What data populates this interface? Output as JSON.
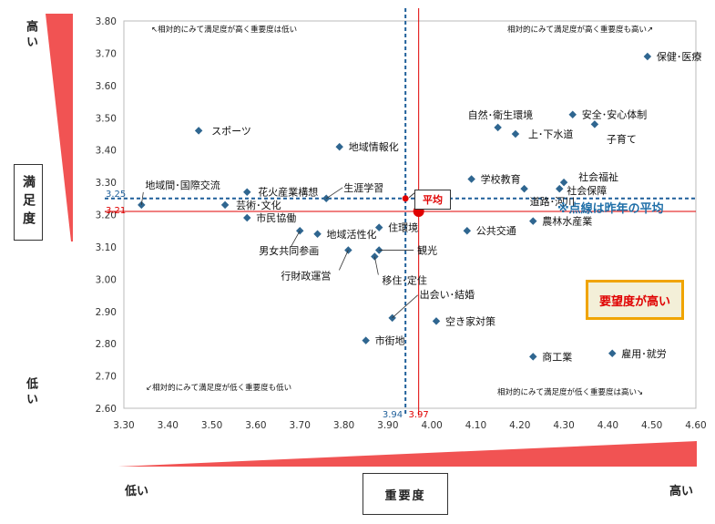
{
  "y_axis_box": "満足度",
  "x_axis_box": "重要度",
  "y_high": "高い",
  "y_low": "低い",
  "x_low": "低い",
  "x_high": "高い",
  "quadrant_labels": {
    "top_left": "↖相対的にみて満足度が高く重要度は低い",
    "top_right": "相対的にみて満足度が高く重要度も高い↗",
    "bottom_left": "↙相対的にみて満足度が低く重要度も低い",
    "bottom_right": "相対的にみて満足度が低く重要度は高い↘"
  },
  "demand_box": "要望度が高い",
  "average_label": "平均",
  "dotted_note": "※点線は昨年の平均",
  "colors": {
    "point": "#2f6690",
    "current_avg": "#e00000",
    "previous_avg": "#1f5f9a",
    "arrow_wedge": "#f04040"
  },
  "chart_data": {
    "type": "scatter",
    "xlabel": "重要度",
    "ylabel": "満足度",
    "xlim": [
      3.3,
      4.6
    ],
    "ylim": [
      2.6,
      3.8
    ],
    "x_ticks": [
      "3.30",
      "3.40",
      "3.50",
      "3.60",
      "3.70",
      "3.80",
      "3.90",
      "4.00",
      "4.10",
      "4.20",
      "4.30",
      "4.40",
      "4.50",
      "4.60"
    ],
    "y_ticks": [
      "3.80",
      "3.70",
      "3.60",
      "3.50",
      "3.40",
      "3.30",
      "3.20",
      "3.10",
      "3.00",
      "2.90",
      "2.80",
      "2.70",
      "2.60"
    ],
    "current_average": {
      "x": 3.97,
      "y": 3.21,
      "x_label": "3.97",
      "y_label": "3.21"
    },
    "previous_average": {
      "x": 3.94,
      "y": 3.25,
      "x_label": "3.94",
      "y_label": "3.25"
    },
    "points": [
      {
        "label": "保健･医療",
        "x": 4.49,
        "y": 3.69
      },
      {
        "label": "安全･安心体制",
        "x": 4.32,
        "y": 3.51
      },
      {
        "label": "自然･衛生環境",
        "x": 4.15,
        "y": 3.47
      },
      {
        "label": "上･下水道",
        "x": 4.19,
        "y": 3.45
      },
      {
        "label": "子育て",
        "x": 4.37,
        "y": 3.48
      },
      {
        "label": "スポーツ",
        "x": 3.47,
        "y": 3.46
      },
      {
        "label": "地域情報化",
        "x": 3.79,
        "y": 3.41
      },
      {
        "label": "学校教育",
        "x": 4.09,
        "y": 3.31
      },
      {
        "label": "社会福祉",
        "x": 4.3,
        "y": 3.3
      },
      {
        "label": "社会保障",
        "x": 4.29,
        "y": 3.28
      },
      {
        "label": "道路･河川",
        "x": 4.21,
        "y": 3.28
      },
      {
        "label": "地域間･国際交流",
        "x": 3.34,
        "y": 3.23
      },
      {
        "label": "花火産業構想",
        "x": 3.58,
        "y": 3.27
      },
      {
        "label": "生涯学習",
        "x": 3.76,
        "y": 3.25
      },
      {
        "label": "芸術･文化",
        "x": 3.53,
        "y": 3.23
      },
      {
        "label": "市民協働",
        "x": 3.58,
        "y": 3.19
      },
      {
        "label": "農林水産業",
        "x": 4.23,
        "y": 3.18
      },
      {
        "label": "住環境",
        "x": 3.88,
        "y": 3.16
      },
      {
        "label": "公共交通",
        "x": 4.08,
        "y": 3.15
      },
      {
        "label": "地域活性化",
        "x": 3.74,
        "y": 3.14
      },
      {
        "label": "男女共同参画",
        "x": 3.7,
        "y": 3.15
      },
      {
        "label": "観光",
        "x": 3.88,
        "y": 3.09
      },
      {
        "label": "行財政運営",
        "x": 3.81,
        "y": 3.09
      },
      {
        "label": "移住･定住",
        "x": 3.87,
        "y": 3.07
      },
      {
        "label": "出会い･結婚",
        "x": 3.91,
        "y": 2.88
      },
      {
        "label": "空き家対策",
        "x": 4.01,
        "y": 2.87
      },
      {
        "label": "市街地",
        "x": 3.85,
        "y": 2.81
      },
      {
        "label": "雇用･就労",
        "x": 4.41,
        "y": 2.77
      },
      {
        "label": "商工業",
        "x": 4.23,
        "y": 2.76
      }
    ]
  }
}
